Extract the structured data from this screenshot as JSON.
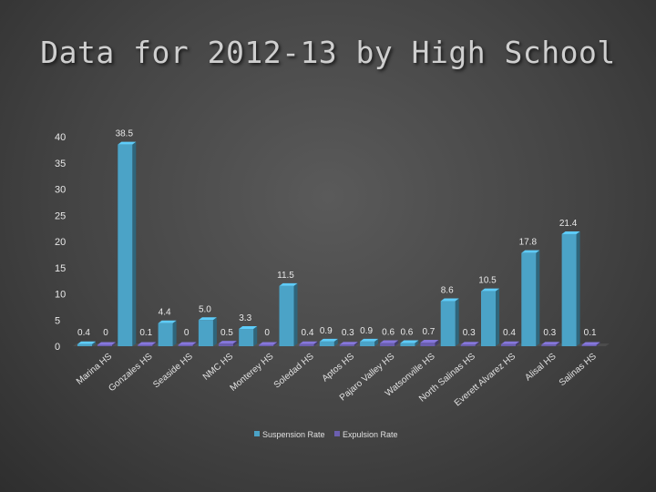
{
  "slide": {
    "title": "Data for 2012-13 by High School"
  },
  "chart_data": {
    "type": "bar",
    "title": "",
    "xlabel": "",
    "ylabel": "",
    "ylim": [
      0,
      40
    ],
    "yticks": [
      0,
      5,
      10,
      15,
      20,
      25,
      30,
      35,
      40
    ],
    "categories": [
      "Marina HS",
      "Gonzales HS",
      "Seaside HS",
      "NMC HS",
      "Monterey HS",
      "Soledad HS",
      "Aptos HS",
      "Pajaro Valley HS",
      "Watsonville HS",
      "North Salinas HS",
      "Everett Alvarez HS",
      "Alisal HS",
      "Salinas HS"
    ],
    "series": [
      {
        "name": "Suspension Rate",
        "color": "#4ba3c7",
        "values": [
          0.4,
          38.5,
          4.4,
          5.0,
          3.3,
          11.5,
          0.9,
          0.9,
          0.6,
          8.6,
          10.5,
          17.8,
          21.4
        ]
      },
      {
        "name": "Expulsion Rate",
        "color": "#6b5fb0",
        "values": [
          0,
          0.1,
          0,
          0.5,
          0,
          0.4,
          0.3,
          0.6,
          0.7,
          0.3,
          0.4,
          0.3,
          0.1
        ]
      }
    ],
    "data_labels": {
      "suspension": [
        "0.4",
        "38.5",
        "4.4",
        "5.0",
        "3.3",
        "11.5",
        "0.9",
        "0.9",
        "0.6",
        "8.6",
        "10.5",
        "17.8",
        "21.4"
      ],
      "expulsion": [
        "0",
        "0.1",
        "0",
        "0.5",
        "0",
        "0.4",
        "0.3",
        "0.6",
        "0.7",
        "0.3",
        "0.4",
        "0.3",
        "0.1"
      ]
    },
    "grid": false,
    "legend": "bottom"
  }
}
